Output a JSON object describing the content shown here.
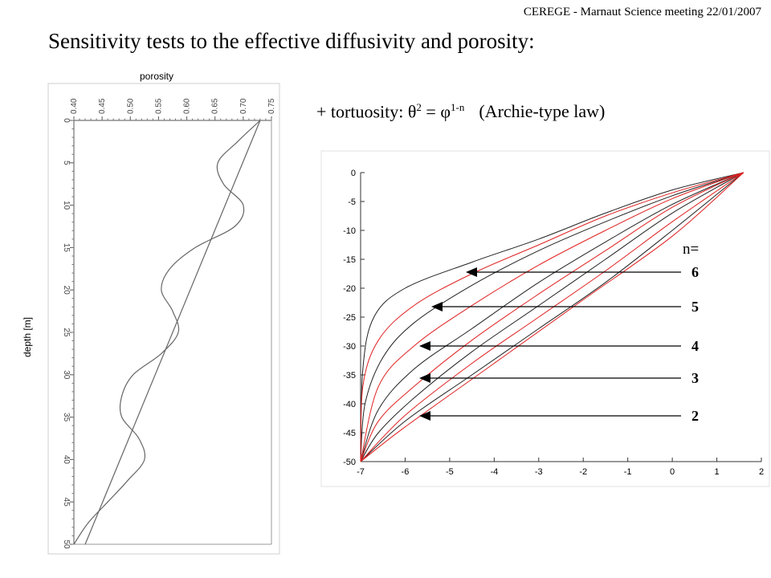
{
  "header": "CEREGE - Marnaut Science meeting 22/01/2007",
  "title": "Sensitivity tests to the effective diffusivity and porosity:",
  "formula": {
    "prefix": "+ tortuosity: θ",
    "exp1": "2",
    "mid": " = φ",
    "exp2": "1-n",
    "law": "(Archie-type law)"
  },
  "n_label": "n=",
  "arrows": [
    "6",
    "5",
    "4",
    "3",
    "2"
  ],
  "chart_data": [
    {
      "type": "line",
      "title": "",
      "xlabel": "porosity",
      "ylabel": "depth [m]",
      "xlim": [
        0.4,
        0.75
      ],
      "ylim": [
        50,
        0
      ],
      "x_ticks": [
        "0.40",
        "0.45",
        "0.50",
        "0.55",
        "0.60",
        "0.65",
        "0.70",
        "0.75"
      ],
      "y_ticks": [
        "0",
        "5",
        "10",
        "15",
        "20",
        "25",
        "30",
        "35",
        "40",
        "45",
        "50"
      ],
      "grid": false,
      "series": [
        {
          "depth": [
            0,
            2.5,
            5,
            7.5,
            10,
            12.5,
            15,
            17.5,
            20,
            22.5,
            25,
            27.5,
            30,
            32.5,
            35,
            37.5,
            40,
            42.5,
            45,
            47.5,
            50
          ],
          "values": [
            0.73,
            0.69,
            0.655,
            0.665,
            0.7,
            0.685,
            0.615,
            0.57,
            0.555,
            0.575,
            0.585,
            0.555,
            0.505,
            0.485,
            0.485,
            0.515,
            0.525,
            0.495,
            0.46,
            0.425,
            0.4
          ]
        },
        {
          "depth": [
            0,
            50
          ],
          "values": [
            0.73,
            0.42
          ]
        }
      ]
    },
    {
      "type": "line",
      "title": "",
      "xlabel": "",
      "ylabel": "",
      "xlim": [
        -7,
        2
      ],
      "ylim": [
        -50,
        0
      ],
      "x_ticks": [
        "-7",
        "-6",
        "-5",
        "-4",
        "-3",
        "-2",
        "-1",
        "0",
        "1",
        "2"
      ],
      "y_ticks": [
        "0",
        "-5",
        "-10",
        "-15",
        "-20",
        "-25",
        "-30",
        "-35",
        "-40",
        "-45",
        "-50"
      ],
      "grid": false,
      "series_black": [
        {
          "x": [
            1.6,
            0,
            -1.5,
            -3,
            -4.5,
            -6,
            -6.7,
            -6.95,
            -7
          ],
          "y": [
            0,
            -3,
            -7,
            -11.5,
            -15.5,
            -20,
            -25,
            -34,
            -50
          ]
        },
        {
          "x": [
            1.6,
            0,
            -1.5,
            -3,
            -4.5,
            -5.8,
            -6.5,
            -6.9,
            -7
          ],
          "y": [
            0,
            -4,
            -8.5,
            -13.5,
            -19.5,
            -26,
            -32,
            -40,
            -50
          ]
        },
        {
          "x": [
            1.6,
            0,
            -1.5,
            -3,
            -4.5,
            -5.8,
            -6.6,
            -7
          ],
          "y": [
            0,
            -5.5,
            -12,
            -19,
            -27,
            -34,
            -41,
            -50
          ]
        },
        {
          "x": [
            1.6,
            0,
            -1.5,
            -3,
            -4.5,
            -5.8,
            -6.6,
            -7
          ],
          "y": [
            0,
            -7,
            -15,
            -23,
            -31,
            -39,
            -45,
            -50
          ]
        },
        {
          "x": [
            1.6,
            0,
            -1.5,
            -3,
            -4.5,
            -6,
            -7
          ],
          "y": [
            0,
            -10,
            -19,
            -27,
            -35,
            -43,
            -50
          ]
        }
      ],
      "series_red": [
        {
          "x": [
            1.6,
            0,
            -1.5,
            -3,
            -4.5,
            -5.8,
            -6.6,
            -6.95,
            -7
          ],
          "y": [
            0,
            -3.5,
            -7.5,
            -12.5,
            -17.5,
            -23,
            -29,
            -37,
            -50
          ]
        },
        {
          "x": [
            1.6,
            0,
            -1.5,
            -3,
            -4.5,
            -5.8,
            -6.6,
            -7
          ],
          "y": [
            0,
            -4.5,
            -10,
            -16,
            -23,
            -30,
            -37,
            -50
          ]
        },
        {
          "x": [
            1.6,
            0,
            -1.5,
            -3,
            -4.5,
            -5.8,
            -6.6,
            -7
          ],
          "y": [
            0,
            -6,
            -13.5,
            -21,
            -29,
            -37,
            -43,
            -50
          ]
        },
        {
          "x": [
            1.6,
            0,
            -1.5,
            -3,
            -4.5,
            -6,
            -7
          ],
          "y": [
            0,
            -8.5,
            -17,
            -25,
            -33,
            -42,
            -50
          ]
        },
        {
          "x": [
            1.6,
            0,
            -2,
            -4,
            -6,
            -7
          ],
          "y": [
            0,
            -11,
            -22,
            -33,
            -44,
            -50
          ]
        }
      ]
    }
  ]
}
